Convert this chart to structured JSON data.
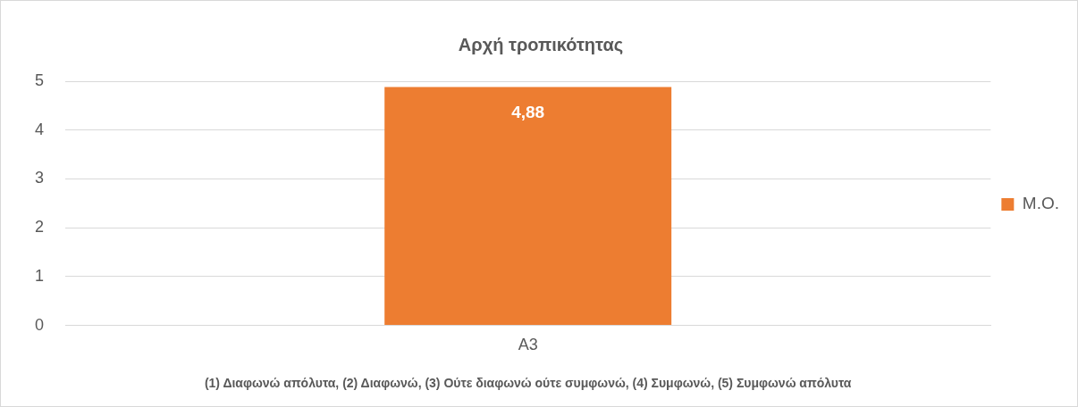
{
  "chart_data": {
    "type": "bar",
    "title": "Αρχή τροπικότητας",
    "xlabel": "(1) Διαφωνώ απόλυτα, (2) Διαφωνώ, (3) Ούτε διαφωνώ ούτε συμφωνώ, (4) Συμφωνώ, (5) Συμφωνώ απόλυτα",
    "categories": [
      "A3"
    ],
    "series": [
      {
        "name": "Μ.Ο.",
        "color": "#ed7d31",
        "values": [
          4.88
        ],
        "value_labels": [
          "4,88"
        ]
      }
    ],
    "ylim": [
      0,
      5
    ],
    "yticks": [
      0,
      1,
      2,
      3,
      4,
      5
    ],
    "grid": "y",
    "legend": "right"
  }
}
